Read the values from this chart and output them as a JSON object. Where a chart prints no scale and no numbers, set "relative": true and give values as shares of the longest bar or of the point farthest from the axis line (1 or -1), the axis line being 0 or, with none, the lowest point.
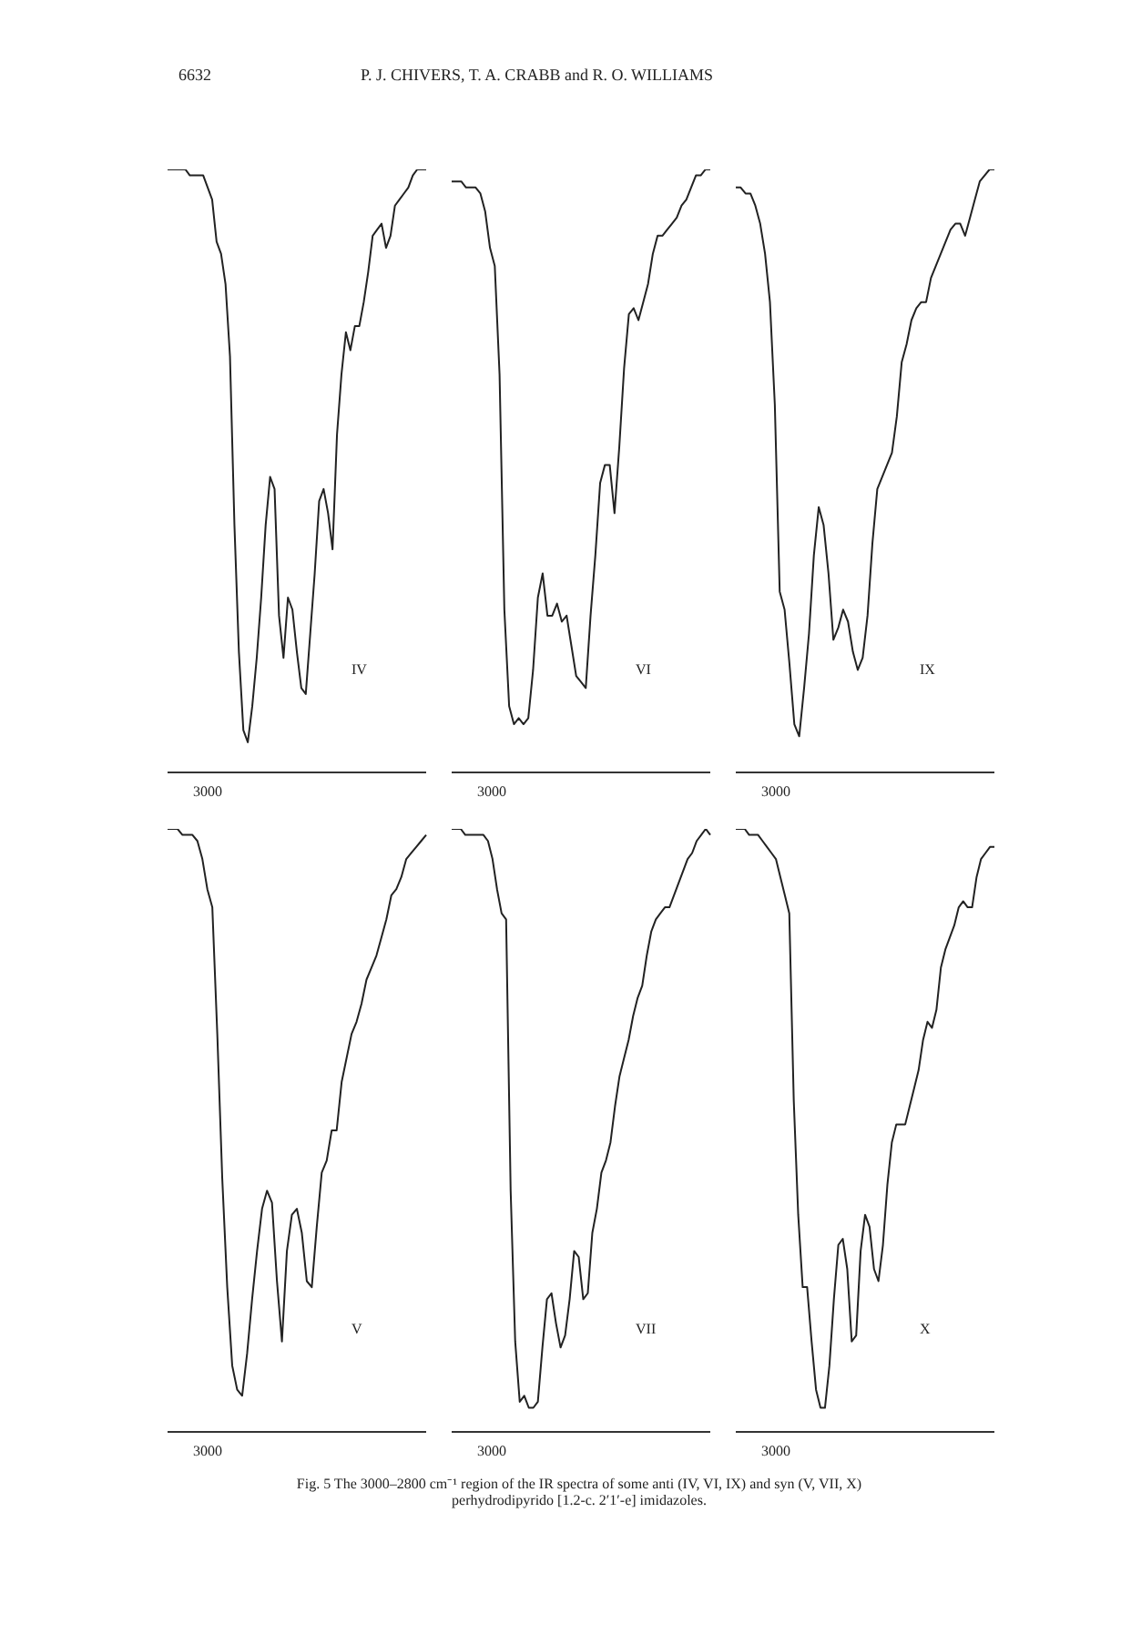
{
  "chart_data": [
    {
      "type": "line",
      "relative": true,
      "title": "P. J. CHIVERS, T. A. CRABB and R. O. WILLIAMS",
      "annotations": [
        "3000",
        "6632"
      ],
      "categories": [
        null,
        null,
        null,
        null,
        null,
        null,
        null,
        null,
        null,
        null,
        null,
        null,
        null,
        null,
        null,
        null,
        null,
        null,
        null,
        null,
        null,
        null,
        null,
        null,
        null,
        null,
        null,
        null,
        null,
        null,
        null,
        null,
        null,
        null,
        null,
        null,
        null,
        null,
        null,
        null,
        null,
        null,
        null,
        null,
        null,
        null,
        null,
        null,
        null,
        null,
        null,
        null,
        null,
        null,
        null,
        null,
        null,
        null,
        null
      ],
      "series": [
        {
          "name": "IV",
          "color": "#222222",
          "values": [
            1.0,
            1.0,
            1.0,
            1.0,
            1.0,
            0.99,
            0.99,
            0.99,
            0.99,
            0.97,
            0.95,
            0.88,
            0.86,
            0.81,
            0.69,
            0.41,
            0.2,
            0.07,
            0.05,
            0.11,
            0.19,
            0.29,
            0.41,
            0.49,
            0.47,
            0.26,
            0.19,
            0.29,
            0.27,
            0.2,
            0.14,
            0.13,
            0.23,
            0.33,
            0.45,
            0.47,
            0.43,
            0.37,
            0.56,
            0.66,
            0.73,
            0.7,
            0.74,
            0.74,
            0.78,
            0.83,
            0.89,
            0.9,
            0.91,
            0.87,
            0.89,
            0.94,
            0.95,
            0.96,
            0.97,
            0.99,
            1.0,
            1.0,
            1.0
          ]
        }
      ]
    },
    {
      "type": "line",
      "relative": true,
      "annotations": [
        "3000"
      ],
      "categories": [
        null,
        null,
        null,
        null,
        null,
        null,
        null,
        null,
        null,
        null,
        null,
        null,
        null,
        null,
        null,
        null,
        null,
        null,
        null,
        null,
        null,
        null,
        null,
        null,
        null,
        null,
        null,
        null,
        null,
        null,
        null,
        null,
        null,
        null,
        null,
        null,
        null,
        null,
        null,
        null,
        null,
        null,
        null,
        null,
        null,
        null,
        null,
        null,
        null,
        null,
        null,
        null,
        null,
        null,
        null
      ],
      "series": [
        {
          "name": "VI",
          "color": "#222222",
          "values": [
            0.98,
            0.98,
            0.98,
            0.97,
            0.97,
            0.97,
            0.96,
            0.93,
            0.87,
            0.84,
            0.66,
            0.27,
            0.11,
            0.08,
            0.09,
            0.08,
            0.09,
            0.17,
            0.29,
            0.33,
            0.26,
            0.26,
            0.28,
            0.25,
            0.26,
            0.21,
            0.16,
            0.15,
            0.14,
            0.26,
            0.36,
            0.48,
            0.51,
            0.51,
            0.43,
            0.54,
            0.67,
            0.76,
            0.77,
            0.75,
            0.78,
            0.81,
            0.86,
            0.89,
            0.89,
            0.9,
            0.91,
            0.92,
            0.94,
            0.95,
            0.97,
            0.99,
            0.99,
            1.0,
            1.0
          ]
        }
      ]
    },
    {
      "type": "line",
      "relative": true,
      "annotations": [
        "3000"
      ],
      "categories": [
        null,
        null,
        null,
        null,
        null,
        null,
        null,
        null,
        null,
        null,
        null,
        null,
        null,
        null,
        null,
        null,
        null,
        null,
        null,
        null,
        null,
        null,
        null,
        null,
        null,
        null,
        null,
        null,
        null,
        null,
        null,
        null,
        null,
        null,
        null,
        null,
        null,
        null,
        null,
        null,
        null,
        null,
        null,
        null,
        null,
        null,
        null,
        null,
        null,
        null,
        null,
        null,
        null,
        null
      ],
      "series": [
        {
          "name": "IX",
          "color": "#222222",
          "values": [
            0.97,
            0.97,
            0.96,
            0.96,
            0.94,
            0.91,
            0.86,
            0.78,
            0.61,
            0.3,
            0.27,
            0.18,
            0.08,
            0.06,
            0.14,
            0.23,
            0.36,
            0.44,
            0.41,
            0.33,
            0.22,
            0.24,
            0.27,
            0.25,
            0.2,
            0.17,
            0.19,
            0.26,
            0.38,
            0.47,
            0.49,
            0.51,
            0.53,
            0.59,
            0.68,
            0.71,
            0.75,
            0.77,
            0.78,
            0.78,
            0.82,
            0.84,
            0.86,
            0.88,
            0.9,
            0.91,
            0.91,
            0.89,
            0.92,
            0.95,
            0.98,
            0.99,
            1.0,
            1.0
          ]
        }
      ]
    },
    {
      "type": "line",
      "relative": true,
      "annotations": [
        "3000"
      ],
      "categories": [
        null,
        null,
        null,
        null,
        null,
        null,
        null,
        null,
        null,
        null,
        null,
        null,
        null,
        null,
        null,
        null,
        null,
        null,
        null,
        null,
        null,
        null,
        null,
        null,
        null,
        null,
        null,
        null,
        null,
        null,
        null,
        null,
        null,
        null,
        null,
        null,
        null,
        null,
        null,
        null,
        null,
        null,
        null,
        null,
        null,
        null,
        null,
        null,
        null,
        null,
        null,
        null,
        null
      ],
      "series": [
        {
          "name": "V",
          "color": "#222222",
          "values": [
            1.0,
            1.0,
            1.0,
            0.99,
            0.99,
            0.99,
            0.98,
            0.95,
            0.9,
            0.87,
            0.66,
            0.42,
            0.24,
            0.11,
            0.07,
            0.06,
            0.13,
            0.22,
            0.3,
            0.37,
            0.4,
            0.38,
            0.25,
            0.15,
            0.3,
            0.36,
            0.37,
            0.33,
            0.25,
            0.24,
            0.34,
            0.43,
            0.45,
            0.5,
            0.5,
            0.58,
            0.62,
            0.66,
            0.68,
            0.71,
            0.75,
            0.77,
            0.79,
            0.82,
            0.85,
            0.89,
            0.9,
            0.92,
            0.95,
            0.96,
            0.97,
            0.98,
            0.99
          ]
        }
      ]
    },
    {
      "type": "line",
      "relative": true,
      "annotations": [
        "3000"
      ],
      "categories": [
        null,
        null,
        null,
        null,
        null,
        null,
        null,
        null,
        null,
        null,
        null,
        null,
        null,
        null,
        null,
        null,
        null,
        null,
        null,
        null,
        null,
        null,
        null,
        null,
        null,
        null,
        null,
        null,
        null,
        null,
        null,
        null,
        null,
        null,
        null,
        null,
        null,
        null,
        null,
        null,
        null,
        null,
        null,
        null,
        null,
        null,
        null,
        null,
        null,
        null,
        null,
        null,
        null,
        null,
        null,
        null,
        null,
        null
      ],
      "series": [
        {
          "name": "VII",
          "color": "#222222",
          "values": [
            1.0,
            1.0,
            1.0,
            0.99,
            0.99,
            0.99,
            0.99,
            0.99,
            0.98,
            0.95,
            0.9,
            0.86,
            0.85,
            0.4,
            0.15,
            0.05,
            0.06,
            0.04,
            0.04,
            0.05,
            0.14,
            0.22,
            0.23,
            0.18,
            0.14,
            0.16,
            0.22,
            0.3,
            0.29,
            0.22,
            0.23,
            0.33,
            0.37,
            0.43,
            0.45,
            0.48,
            0.54,
            0.59,
            0.62,
            0.65,
            0.69,
            0.72,
            0.74,
            0.79,
            0.83,
            0.85,
            0.86,
            0.87,
            0.87,
            0.89,
            0.91,
            0.93,
            0.95,
            0.96,
            0.98,
            0.99,
            1.0,
            0.99
          ]
        }
      ]
    },
    {
      "type": "line",
      "relative": true,
      "annotations": [
        "3000",
        "Fig. 5 The 3000–2800 cm⁻¹ region of the IR spectra of some anti (IV, VI, IX) and syn (V, VII, X) perhydrodipyrido [1.2-c. 2′1′-e] imidazoles."
      ],
      "categories": [
        null,
        null,
        null,
        null,
        null,
        null,
        null,
        null,
        null,
        null,
        null,
        null,
        null,
        null,
        null,
        null,
        null,
        null,
        null,
        null,
        null,
        null,
        null,
        null,
        null,
        null,
        null,
        null,
        null,
        null,
        null,
        null,
        null,
        null,
        null,
        null,
        null,
        null,
        null,
        null,
        null,
        null,
        null,
        null,
        null,
        null,
        null,
        null,
        null,
        null,
        null,
        null,
        null,
        null,
        null,
        null,
        null,
        null,
        null
      ],
      "series": [
        {
          "name": "X",
          "color": "#222222",
          "values": [
            1.0,
            1.0,
            1.0,
            0.99,
            0.99,
            0.99,
            0.98,
            0.97,
            0.96,
            0.95,
            0.92,
            0.89,
            0.86,
            0.55,
            0.36,
            0.24,
            0.24,
            0.15,
            0.07,
            0.04,
            0.04,
            0.11,
            0.22,
            0.31,
            0.32,
            0.27,
            0.15,
            0.16,
            0.3,
            0.36,
            0.34,
            0.27,
            0.25,
            0.31,
            0.41,
            0.48,
            0.51,
            0.51,
            0.51,
            0.54,
            0.57,
            0.6,
            0.65,
            0.68,
            0.67,
            0.7,
            0.77,
            0.8,
            0.82,
            0.84,
            0.87,
            0.88,
            0.87,
            0.87,
            0.92,
            0.95,
            0.96,
            0.97,
            0.97
          ]
        }
      ]
    }
  ]
}
